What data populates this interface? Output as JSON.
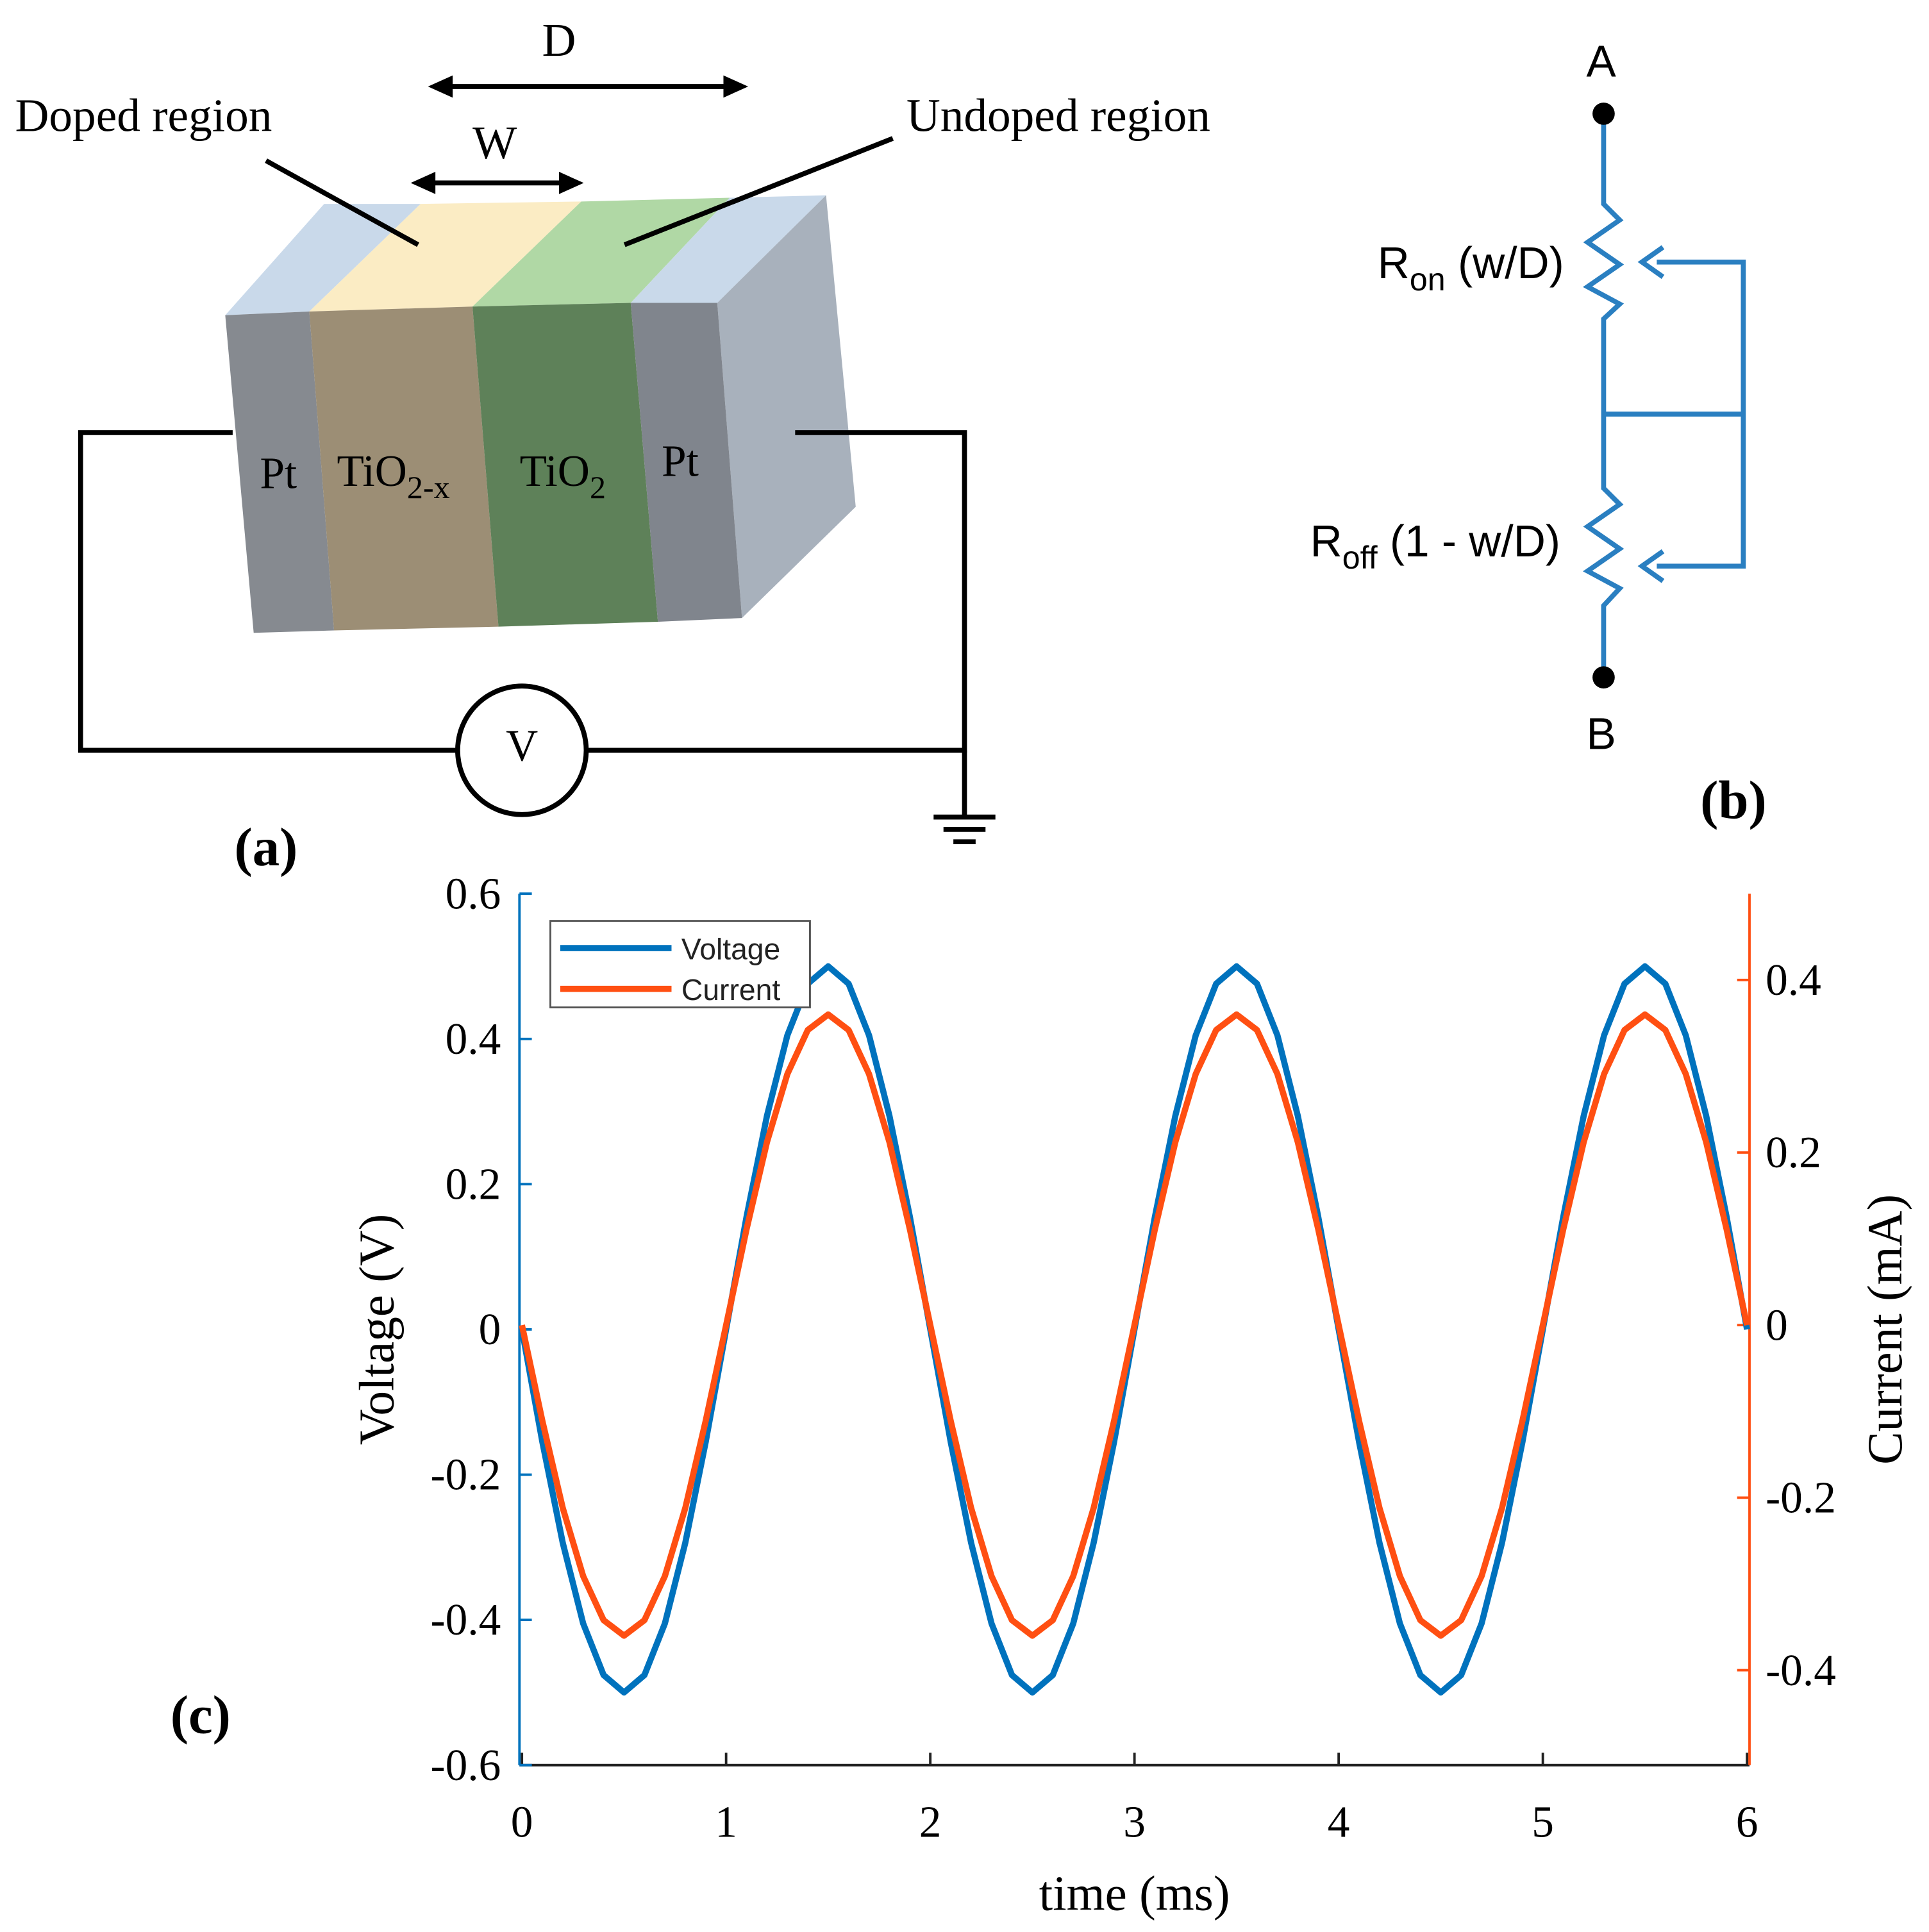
{
  "panel_a": {
    "label": "(a)",
    "dimension_D": "D",
    "dimension_W": "W",
    "doped_label": "Doped region",
    "undoped_label": "Undoped region",
    "layers": [
      {
        "text": "Pt"
      },
      {
        "text": "TiO",
        "sub": "2-x"
      },
      {
        "text": "TiO",
        "sub": "2"
      },
      {
        "text": "Pt"
      }
    ],
    "source": "V"
  },
  "panel_b": {
    "label": "(b)",
    "node_top": "A",
    "node_bottom": "B",
    "r_on": {
      "text": "R",
      "sub": "on",
      "rest": " (w/D)"
    },
    "r_off": {
      "text": "R",
      "sub": "off",
      "rest": " (1 - w/D)"
    }
  },
  "panel_c_label": "(c)",
  "chart_data": {
    "type": "line",
    "xlabel": "time (ms)",
    "ylabel": "Voltage (V)",
    "y2label": "Current (mA)",
    "xlim": [
      0,
      6
    ],
    "xticks": [
      0,
      1,
      2,
      3,
      4,
      5,
      6
    ],
    "ylim": [
      -0.6,
      0.6
    ],
    "yticks": [
      -0.6,
      -0.4,
      -0.2,
      0,
      0.2,
      0.4,
      0.6
    ],
    "y2lim": [
      -0.51,
      0.5
    ],
    "y2ticks": [
      -0.4,
      -0.2,
      0,
      0.2,
      0.4
    ],
    "legend": "upper left",
    "x": [
      0,
      0.1,
      0.2,
      0.3,
      0.4,
      0.5,
      0.6,
      0.7,
      0.8,
      0.9,
      1,
      1.1,
      1.2,
      1.3,
      1.4,
      1.5,
      1.6,
      1.7,
      1.8,
      1.9,
      2,
      2.1,
      2.2,
      2.3,
      2.4,
      2.5,
      2.6,
      2.7,
      2.8,
      2.9,
      3,
      3.1,
      3.2,
      3.3,
      3.4,
      3.5,
      3.6,
      3.7,
      3.8,
      3.9,
      4,
      4.1,
      4.2,
      4.3,
      4.4,
      4.5,
      4.6,
      4.7,
      4.8,
      4.9,
      5,
      5.1,
      5.2,
      5.3,
      5.4,
      5.5,
      5.6,
      5.7,
      5.8,
      5.9,
      6
    ],
    "series": [
      {
        "name": "Voltage",
        "color": "#0072bd",
        "axis": "y",
        "values": [
          0,
          -0.155,
          -0.294,
          -0.405,
          -0.476,
          -0.5,
          -0.476,
          -0.405,
          -0.294,
          -0.155,
          0,
          0.155,
          0.294,
          0.405,
          0.476,
          0.5,
          0.476,
          0.405,
          0.294,
          0.155,
          0,
          -0.155,
          -0.294,
          -0.405,
          -0.476,
          -0.5,
          -0.476,
          -0.405,
          -0.294,
          -0.155,
          0,
          0.155,
          0.294,
          0.405,
          0.476,
          0.5,
          0.476,
          0.405,
          0.294,
          0.155,
          0,
          -0.155,
          -0.294,
          -0.405,
          -0.476,
          -0.5,
          -0.476,
          -0.405,
          -0.294,
          -0.155,
          0,
          0.155,
          0.294,
          0.405,
          0.476,
          0.5,
          0.476,
          0.405,
          0.294,
          0.155,
          0
        ]
      },
      {
        "name": "Current",
        "color": "#ff4f12",
        "axis": "y2",
        "values": [
          0,
          -0.111,
          -0.212,
          -0.291,
          -0.342,
          -0.36,
          -0.342,
          -0.291,
          -0.212,
          -0.111,
          0,
          0.111,
          0.212,
          0.291,
          0.342,
          0.36,
          0.342,
          0.291,
          0.212,
          0.111,
          0,
          -0.111,
          -0.212,
          -0.291,
          -0.342,
          -0.36,
          -0.342,
          -0.291,
          -0.212,
          -0.111,
          0,
          0.111,
          0.212,
          0.291,
          0.342,
          0.36,
          0.342,
          0.291,
          0.212,
          0.111,
          0,
          -0.111,
          -0.212,
          -0.291,
          -0.342,
          -0.36,
          -0.342,
          -0.291,
          -0.212,
          -0.111,
          0,
          0.111,
          0.212,
          0.291,
          0.342,
          0.36,
          0.342,
          0.291,
          0.212,
          0.111,
          0
        ]
      }
    ]
  }
}
